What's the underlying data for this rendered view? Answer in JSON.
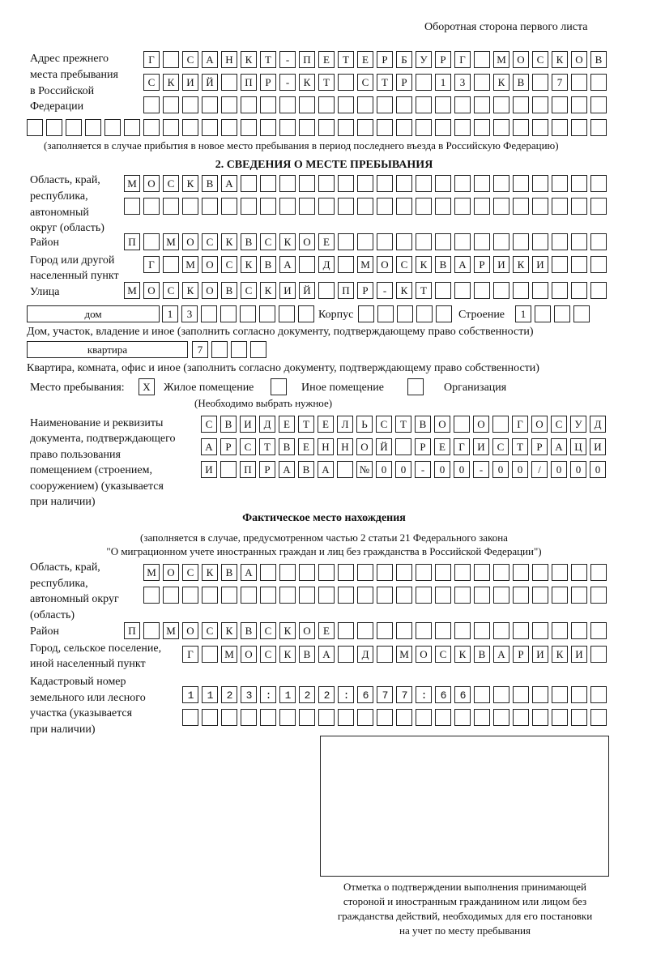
{
  "header": {
    "title": "Оборотная сторона первого листа"
  },
  "previous_address": {
    "label": [
      "Адрес прежнего",
      "места пребывания",
      "в Российской",
      "Федерации"
    ],
    "rows": [
      "Г САНКТ-ПЕТЕРБУРГ МОСКОВ",
      "СКИЙ ПР-КТ СТР 13 КВ 7",
      "",
      ""
    ],
    "note": "(заполняется в случае прибытия в новое место пребывания в период последнего въезда в Российскую Федерацию)"
  },
  "section2": {
    "title": "2. СВЕДЕНИЯ О МЕСТЕ ПРЕБЫВАНИЯ",
    "region": {
      "label": [
        "Область, край,",
        "республика,",
        "автономный",
        "округ (область)"
      ],
      "rows": [
        "МОСКВА",
        ""
      ]
    },
    "district": {
      "label": "Район",
      "value": "П МОСКВСКОЕ"
    },
    "city": {
      "label": [
        "Город или другой",
        "населенный пункт"
      ],
      "value": "Г МОСКВА Д МОСКВАРИКИ"
    },
    "street": {
      "label": "Улица",
      "value": "МОСКОВСКИЙ ПР-КТ"
    },
    "house": {
      "type": "дом",
      "number": "13",
      "korpus_label": "Корпус",
      "korpus": "",
      "building_label": "Строение",
      "building": "1",
      "note": "Дом, участок, владение и иное (заполнить согласно документу, подтверждающему право собственности)"
    },
    "apartment": {
      "type": "квартира",
      "number": "7",
      "note": "Квартира, комната, офис и иное (заполнить согласно документу, подтверждающему право собственности)"
    },
    "place_type": {
      "label": "Место пребывания:",
      "options": [
        {
          "label": "Жилое помещение",
          "checked": true,
          "mark": "X"
        },
        {
          "label": "Иное помещение",
          "checked": false,
          "mark": ""
        },
        {
          "label": "Организация",
          "checked": false,
          "mark": ""
        }
      ],
      "note": "(Необходимо выбрать нужное)"
    },
    "document": {
      "label": [
        "Наименование и реквизиты",
        "документа, подтверждающего",
        "право пользования",
        "помещением (строением,",
        "сооружением) (указывается",
        "при наличии)"
      ],
      "rows": [
        "СВИДЕТЕЛЬСТВО О ГОСУД",
        "АРСТВЕННОЙ РЕГИСТРАЦИ",
        "И ПРАВА №00-00-00/000"
      ]
    }
  },
  "actual_location": {
    "title": "Фактическое место нахождения",
    "subtitle": [
      "(заполняется в случае, предусмотренном частью 2 статьи 21 Федерального закона",
      "\"О миграционном учете иностранных граждан и лиц без гражданства в Российской Федерации\")"
    ],
    "region": {
      "label": [
        "Область, край,",
        "республика,",
        "автономный округ",
        "(область)"
      ],
      "rows": [
        "МОСКВА",
        ""
      ]
    },
    "district": {
      "label": "Район",
      "value": "П МОСКВСКОЕ"
    },
    "city": {
      "label": [
        "Город, сельское поселение,",
        "иной населенный пункт"
      ],
      "value": "Г МОСКВА Д МОСКВАРИКИ"
    },
    "cadastral": {
      "label": [
        "Кадастровый номер",
        "земельного или лесного",
        "участка (указывается",
        "при наличии)"
      ],
      "rows": [
        "1123:122:677:66",
        ""
      ]
    }
  },
  "confirmation": {
    "caption": [
      "Отметка о подтверждении выполнения принимающей",
      "стороной и иностранным гражданином или лицом без",
      "гражданства действий, необходимых для его постановки",
      "на учет по месту пребывания"
    ]
  }
}
